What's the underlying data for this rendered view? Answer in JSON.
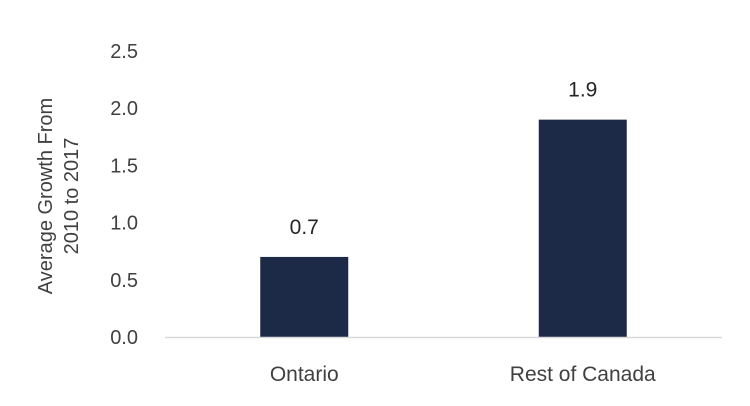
{
  "chart_data": {
    "type": "bar",
    "categories": [
      "Ontario",
      "Rest of Canada"
    ],
    "values": [
      0.7,
      1.9
    ],
    "data_labels": [
      "0.7",
      "1.9"
    ],
    "yticks": [
      "0.0",
      "0.5",
      "1.0",
      "1.5",
      "2.0",
      "2.5"
    ],
    "ylabel_lines": [
      "Average Growth From",
      "2010 to 2017"
    ],
    "ylim": [
      0,
      2.5
    ],
    "grid": false,
    "legend": "none",
    "bar_color": "#1c2a47",
    "axis_color": "#d9d9d9"
  }
}
